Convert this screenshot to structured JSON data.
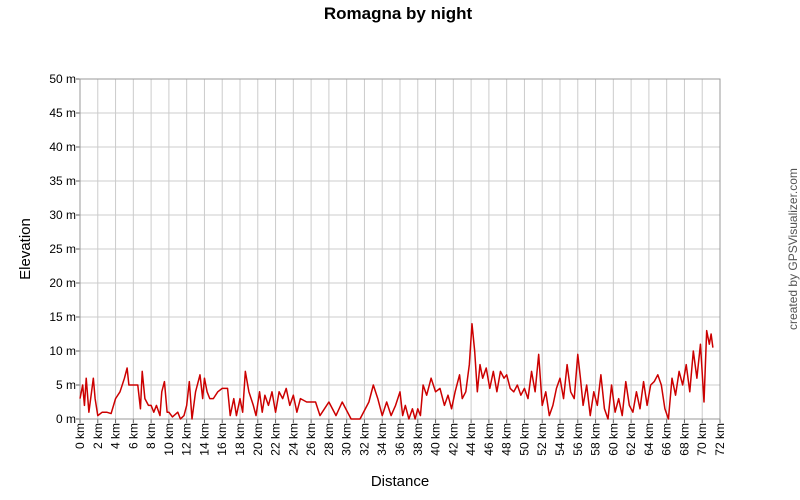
{
  "chart_data": {
    "type": "line",
    "title": "Romagna by night",
    "x_label": "Distance",
    "y_label": "Elevation",
    "annotation": "created by GPSVisualizer.com",
    "color": "#cc0000",
    "grid": true,
    "xlim": [
      0,
      72
    ],
    "ylim": [
      0,
      50
    ],
    "xticks": [
      {
        "value": 0,
        "label": "0 km"
      },
      {
        "value": 2,
        "label": "2 km"
      },
      {
        "value": 4,
        "label": "4 km"
      },
      {
        "value": 6,
        "label": "6 km"
      },
      {
        "value": 8,
        "label": "8 km"
      },
      {
        "value": 10,
        "label": "10 km"
      },
      {
        "value": 12,
        "label": "12 km"
      },
      {
        "value": 14,
        "label": "14 km"
      },
      {
        "value": 16,
        "label": "16 km"
      },
      {
        "value": 18,
        "label": "18 km"
      },
      {
        "value": 20,
        "label": "20 km"
      },
      {
        "value": 22,
        "label": "22 km"
      },
      {
        "value": 24,
        "label": "24 km"
      },
      {
        "value": 26,
        "label": "26 km"
      },
      {
        "value": 28,
        "label": "28 km"
      },
      {
        "value": 30,
        "label": "30 km"
      },
      {
        "value": 32,
        "label": "32 km"
      },
      {
        "value": 34,
        "label": "34 km"
      },
      {
        "value": 36,
        "label": "36 km"
      },
      {
        "value": 38,
        "label": "38 km"
      },
      {
        "value": 40,
        "label": "40 km"
      },
      {
        "value": 42,
        "label": "42 km"
      },
      {
        "value": 44,
        "label": "44 km"
      },
      {
        "value": 46,
        "label": "46 km"
      },
      {
        "value": 48,
        "label": "48 km"
      },
      {
        "value": 50,
        "label": "50 km"
      },
      {
        "value": 52,
        "label": "52 km"
      },
      {
        "value": 54,
        "label": "54 km"
      },
      {
        "value": 56,
        "label": "56 km"
      },
      {
        "value": 58,
        "label": "58 km"
      },
      {
        "value": 60,
        "label": "60 km"
      },
      {
        "value": 62,
        "label": "62 km"
      },
      {
        "value": 64,
        "label": "64 km"
      },
      {
        "value": 66,
        "label": "66 km"
      },
      {
        "value": 68,
        "label": "68 km"
      },
      {
        "value": 70,
        "label": "70 km"
      },
      {
        "value": 72,
        "label": "72 km"
      }
    ],
    "yticks": [
      {
        "value": 0,
        "label": "0 m"
      },
      {
        "value": 5,
        "label": "5 m"
      },
      {
        "value": 10,
        "label": "10 m"
      },
      {
        "value": 15,
        "label": "15 m"
      },
      {
        "value": 20,
        "label": "20 m"
      },
      {
        "value": 25,
        "label": "25 m"
      },
      {
        "value": 30,
        "label": "30 m"
      },
      {
        "value": 35,
        "label": "35 m"
      },
      {
        "value": 40,
        "label": "40 m"
      },
      {
        "value": 45,
        "label": "45 m"
      },
      {
        "value": 50,
        "label": "50 m"
      }
    ],
    "x": [
      0,
      0.3,
      0.5,
      0.7,
      1,
      1.3,
      1.5,
      1.7,
      2,
      2.5,
      3,
      3.5,
      4,
      4.5,
      5,
      5.3,
      5.5,
      6,
      6.5,
      6.8,
      7,
      7.3,
      7.7,
      8,
      8.3,
      8.6,
      9,
      9.2,
      9.5,
      9.8,
      10,
      10.4,
      11,
      11.3,
      11.7,
      12,
      12.3,
      12.6,
      13,
      13.5,
      13.8,
      14,
      14.3,
      14.6,
      15,
      15.5,
      16,
      16.6,
      16.9,
      17.3,
      17.6,
      18,
      18.3,
      18.6,
      19,
      19.5,
      19.8,
      20.2,
      20.5,
      20.8,
      21.2,
      21.6,
      22,
      22.4,
      22.8,
      23.2,
      23.6,
      24,
      24.4,
      24.8,
      25.5,
      26.5,
      27,
      27.5,
      28,
      28.8,
      29.5,
      30.5,
      31.5,
      32.5,
      33,
      33.5,
      34,
      34.5,
      35,
      35.5,
      36,
      36.3,
      36.6,
      37,
      37.4,
      37.7,
      38,
      38.3,
      38.6,
      39,
      39.5,
      40,
      40.5,
      41,
      41.4,
      41.8,
      42.2,
      42.7,
      43,
      43.4,
      43.8,
      44.1,
      44.4,
      44.7,
      45,
      45.3,
      45.7,
      46.1,
      46.5,
      46.9,
      47.3,
      47.7,
      48,
      48.4,
      48.8,
      49.2,
      49.6,
      50,
      50.4,
      50.8,
      51.2,
      51.6,
      52,
      52.4,
      52.8,
      53.2,
      53.6,
      54,
      54.4,
      54.8,
      55.2,
      55.6,
      56,
      56.3,
      56.6,
      57,
      57.4,
      57.8,
      58.2,
      58.6,
      59,
      59.4,
      59.8,
      60.2,
      60.6,
      61,
      61.4,
      61.8,
      62.2,
      62.6,
      63,
      63.4,
      63.8,
      64.2,
      64.6,
      65,
      65.4,
      65.8,
      66.2,
      66.6,
      67,
      67.4,
      67.8,
      68.2,
      68.6,
      69,
      69.4,
      69.8,
      70.2,
      70.5,
      70.8,
      71,
      71.2
    ],
    "values": [
      3,
      5,
      2,
      6,
      1,
      4,
      6,
      3,
      0.5,
      1,
      1,
      0.8,
      3,
      4,
      6,
      7.5,
      5,
      5,
      5,
      1.5,
      7,
      3,
      2,
      2,
      1,
      2,
      0.5,
      4,
      5.5,
      1,
      1,
      0.3,
      1,
      0,
      0.5,
      2,
      5.5,
      0,
      4,
      6.5,
      3,
      6,
      4,
      3,
      3,
      4,
      4.5,
      4.5,
      0.5,
      3,
      0.5,
      3,
      1,
      7,
      4,
      2,
      0.5,
      4,
      1,
      3.5,
      2,
      4,
      1,
      4,
      3,
      4.5,
      2,
      3.5,
      1,
      3,
      2.5,
      2.5,
      0.5,
      1.5,
      2.5,
      0.5,
      2.5,
      0,
      0,
      2.5,
      5,
      3,
      0.5,
      2.5,
      0.5,
      2,
      4,
      0.5,
      2,
      0,
      1.5,
      0,
      1.5,
      0.5,
      5,
      3.5,
      6,
      4,
      4.5,
      2,
      3.5,
      1.5,
      4,
      6.5,
      3,
      4,
      8,
      14,
      10,
      4,
      8,
      6,
      7.5,
      4.5,
      7,
      4,
      7,
      6,
      6.5,
      4.5,
      4,
      5,
      3.5,
      4.5,
      3,
      7,
      4,
      9.5,
      2,
      4,
      0.5,
      2,
      4.5,
      6,
      3,
      8,
      4,
      3,
      9.5,
      6,
      2,
      5,
      0.5,
      4,
      2,
      6.5,
      1.5,
      0,
      5,
      1,
      3,
      0.5,
      5.5,
      2,
      1,
      4,
      1.5,
      5.5,
      2,
      5,
      5.5,
      6.5,
      5,
      1.5,
      0,
      6,
      3.5,
      7,
      5,
      8,
      4,
      10,
      6,
      11,
      2.5,
      13,
      11,
      12.5,
      10.5
    ]
  }
}
